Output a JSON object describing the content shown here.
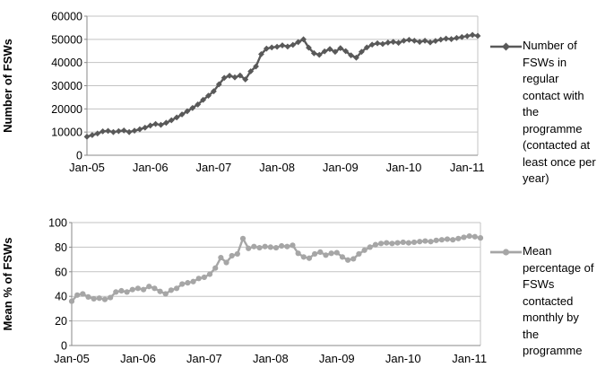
{
  "page": {
    "background": "#ffffff",
    "text_color": "#000000",
    "gridline_color": "#c3c3c3",
    "axis_color": "#8a8a8a"
  },
  "chart_data": [
    {
      "type": "line",
      "title": "",
      "xlabel": "",
      "ylabel": "Number of FSWs",
      "ylim": [
        0,
        60000
      ],
      "ytick_interval": 10000,
      "ytick_labels": [
        "0",
        "10000",
        "20000",
        "30000",
        "40000",
        "50000",
        "60000"
      ],
      "x_tick_labels": [
        "Jan-05",
        "Jan-06",
        "Jan-07",
        "Jan-08",
        "Jan-09",
        "Jan-10",
        "Jan-11"
      ],
      "grid": "horizontal",
      "legend_position": "right",
      "x": [
        "Jan-05",
        "Feb-05",
        "Mar-05",
        "Apr-05",
        "May-05",
        "Jun-05",
        "Jul-05",
        "Aug-05",
        "Sep-05",
        "Oct-05",
        "Nov-05",
        "Dec-05",
        "Jan-06",
        "Feb-06",
        "Mar-06",
        "Apr-06",
        "May-06",
        "Jun-06",
        "Jul-06",
        "Aug-06",
        "Sep-06",
        "Oct-06",
        "Nov-06",
        "Dec-06",
        "Jan-07",
        "Feb-07",
        "Mar-07",
        "Apr-07",
        "May-07",
        "Jun-07",
        "Jul-07",
        "Aug-07",
        "Sep-07",
        "Oct-07",
        "Nov-07",
        "Dec-07",
        "Jan-08",
        "Feb-08",
        "Mar-08",
        "Apr-08",
        "May-08",
        "Jun-08",
        "Jul-08",
        "Aug-08",
        "Sep-08",
        "Oct-08",
        "Nov-08",
        "Dec-08",
        "Jan-09",
        "Feb-09",
        "Mar-09",
        "Apr-09",
        "May-09",
        "Jun-09",
        "Jul-09",
        "Aug-09",
        "Sep-09",
        "Oct-09",
        "Nov-09",
        "Dec-09",
        "Jan-10",
        "Feb-10",
        "Mar-10",
        "Apr-10",
        "May-10",
        "Jun-10",
        "Jul-10",
        "Aug-10",
        "Sep-10",
        "Oct-10",
        "Nov-10",
        "Dec-10",
        "Jan-11",
        "Feb-11",
        "Mar-11"
      ],
      "series": [
        {
          "name": "Number of FSWs in regular contact with the programme (contacted at least once per year)",
          "color": "#595959",
          "marker": "diamond",
          "values": [
            8000,
            8700,
            9400,
            10300,
            10500,
            10000,
            10400,
            10700,
            10000,
            10600,
            11200,
            11900,
            12800,
            13500,
            13100,
            14000,
            15100,
            16300,
            17600,
            19000,
            20400,
            21900,
            23900,
            25700,
            27600,
            30600,
            33400,
            34300,
            33600,
            34400,
            32700,
            36200,
            38300,
            43600,
            46000,
            46500,
            46800,
            47400,
            46900,
            47600,
            48800,
            50000,
            46400,
            44000,
            43300,
            44800,
            45800,
            44600,
            46200,
            44900,
            43100,
            42100,
            44600,
            46500,
            47700,
            48300,
            48000,
            48600,
            48900,
            48500,
            49400,
            49800,
            49400,
            48900,
            49400,
            48700,
            49300,
            49900,
            50300,
            50100,
            50600,
            51000,
            51400,
            51900,
            51500
          ]
        }
      ]
    },
    {
      "type": "line",
      "title": "",
      "xlabel": "",
      "ylabel": "Mean  % of FSWs",
      "ylim": [
        0,
        100
      ],
      "ytick_interval": 20,
      "ytick_labels": [
        "0",
        "20",
        "40",
        "60",
        "80",
        "100"
      ],
      "x_tick_labels": [
        "Jan-05",
        "Jan-06",
        "Jan-07",
        "Jan-08",
        "Jan-09",
        "Jan-10",
        "Jan-11"
      ],
      "grid": "horizontal",
      "legend_position": "right",
      "x": [
        "Jan-05",
        "Feb-05",
        "Mar-05",
        "Apr-05",
        "May-05",
        "Jun-05",
        "Jul-05",
        "Aug-05",
        "Sep-05",
        "Oct-05",
        "Nov-05",
        "Dec-05",
        "Jan-06",
        "Feb-06",
        "Mar-06",
        "Apr-06",
        "May-06",
        "Jun-06",
        "Jul-06",
        "Aug-06",
        "Sep-06",
        "Oct-06",
        "Nov-06",
        "Dec-06",
        "Jan-07",
        "Feb-07",
        "Mar-07",
        "Apr-07",
        "May-07",
        "Jun-07",
        "Jul-07",
        "Aug-07",
        "Sep-07",
        "Oct-07",
        "Nov-07",
        "Dec-07",
        "Jan-08",
        "Feb-08",
        "Mar-08",
        "Apr-08",
        "May-08",
        "Jun-08",
        "Jul-08",
        "Aug-08",
        "Sep-08",
        "Oct-08",
        "Nov-08",
        "Dec-08",
        "Jan-09",
        "Feb-09",
        "Mar-09",
        "Apr-09",
        "May-09",
        "Jun-09",
        "Jul-09",
        "Aug-09",
        "Sep-09",
        "Oct-09",
        "Nov-09",
        "Dec-09",
        "Jan-10",
        "Feb-10",
        "Mar-10",
        "Apr-10",
        "May-10",
        "Jun-10",
        "Jul-10",
        "Aug-10",
        "Sep-10",
        "Oct-10",
        "Nov-10",
        "Dec-10",
        "Jan-11",
        "Feb-11",
        "Mar-11"
      ],
      "series": [
        {
          "name": "Mean percentage of FSWs contacted monthly by the programme",
          "color": "#a6a6a6",
          "marker": "circle",
          "values": [
            36,
            41,
            42,
            39.5,
            38,
            38.5,
            37.5,
            39,
            43.5,
            44.5,
            43.5,
            45.5,
            46.5,
            45.5,
            48,
            46.5,
            44,
            42,
            45,
            46.5,
            50,
            51,
            52,
            54.5,
            55.5,
            58,
            63,
            71.5,
            67.5,
            73,
            74.5,
            87,
            79,
            80.5,
            79.5,
            80.5,
            80,
            79.5,
            81,
            80.5,
            81.5,
            75,
            72,
            71,
            74.5,
            76,
            73.5,
            75,
            75.5,
            72,
            69.5,
            70.5,
            74.5,
            77.5,
            80,
            82,
            83,
            83.5,
            83,
            83.5,
            84,
            83.5,
            84,
            84.5,
            85,
            84.5,
            85.5,
            86,
            86.5,
            86,
            87,
            88,
            89,
            88.5,
            87.5
          ]
        }
      ]
    }
  ]
}
